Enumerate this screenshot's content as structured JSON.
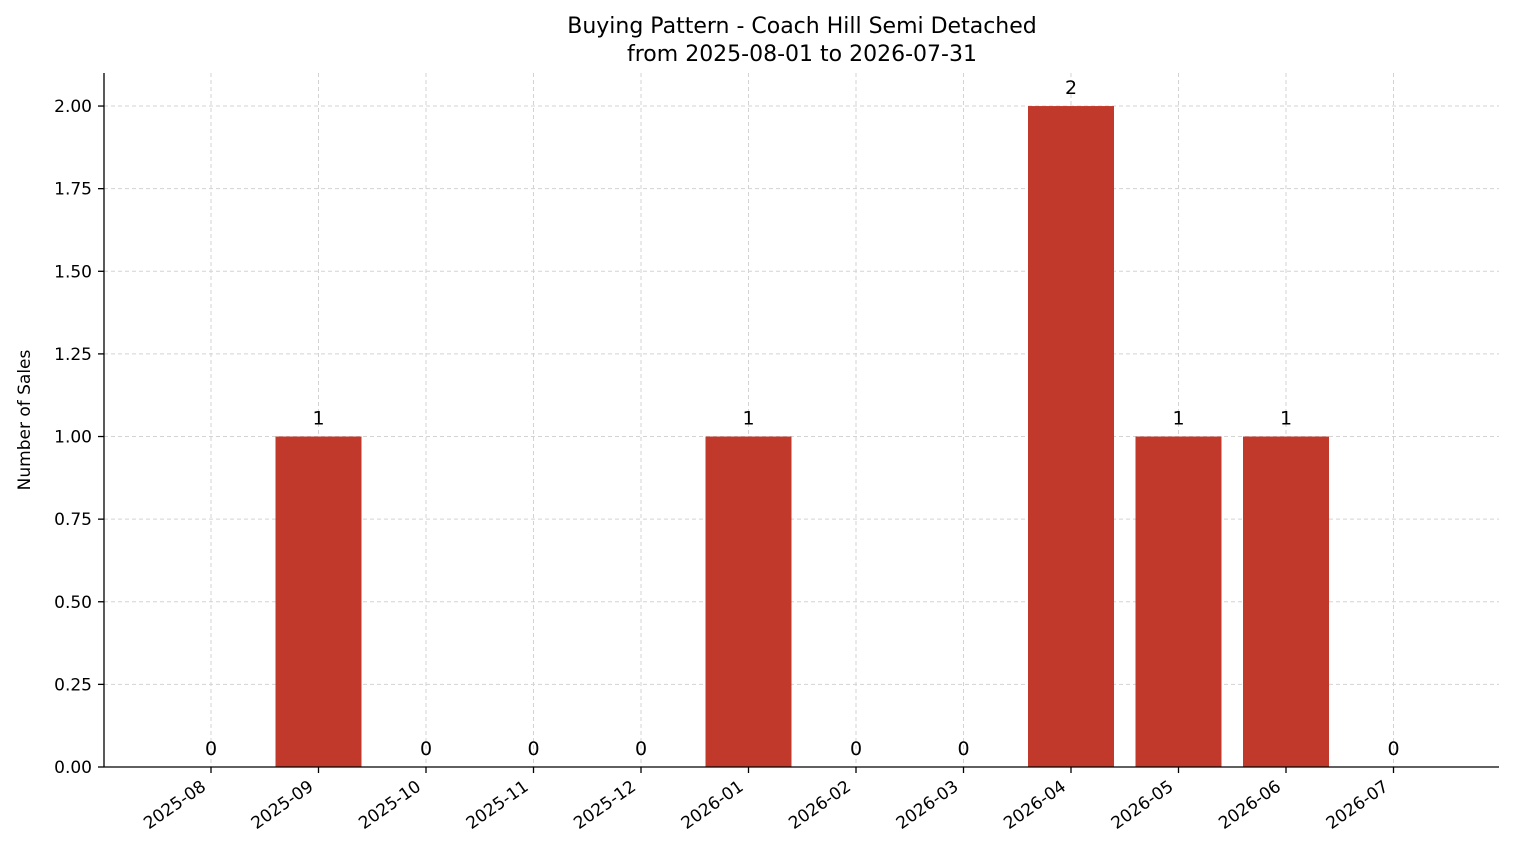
{
  "chart_data": {
    "type": "bar",
    "title": "Buying Pattern - Coach Hill Semi Detached",
    "subtitle": "from 2025-08-01 to 2026-07-31",
    "xlabel": "",
    "ylabel": "Number of Sales",
    "categories": [
      "2025-08",
      "2025-09",
      "2025-10",
      "2025-11",
      "2025-12",
      "2026-01",
      "2026-02",
      "2026-03",
      "2026-04",
      "2026-05",
      "2026-06",
      "2026-07"
    ],
    "values": [
      0,
      1,
      0,
      0,
      0,
      1,
      0,
      0,
      2,
      1,
      1,
      0
    ],
    "data_labels": [
      "0",
      "1",
      "0",
      "0",
      "0",
      "1",
      "0",
      "0",
      "2",
      "1",
      "1",
      "0"
    ],
    "yticks": [
      0,
      0.25,
      0.5,
      0.75,
      1.0,
      1.25,
      1.5,
      1.75,
      2.0
    ],
    "ytick_labels": [
      "0.00",
      "0.25",
      "0.50",
      "0.75",
      "1.00",
      "1.25",
      "1.50",
      "1.75",
      "2.00"
    ],
    "ylim": [
      0,
      2.1
    ],
    "grid": true,
    "bar_color": "#c0392b"
  }
}
